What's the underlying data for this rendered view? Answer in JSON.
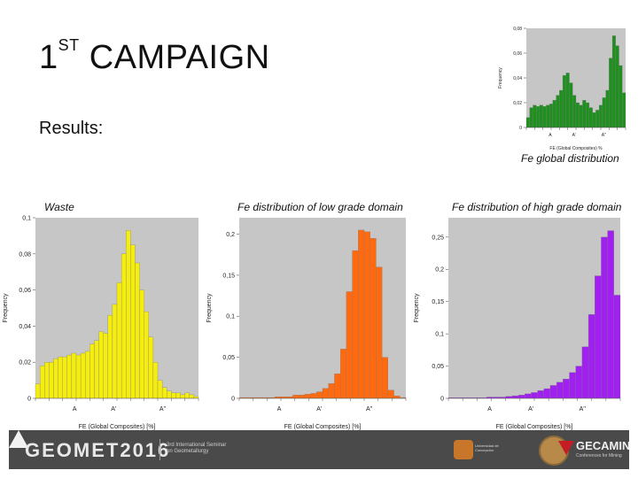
{
  "slide": {
    "title_main": "1",
    "title_sup": "ST",
    "title_rest": "CAMPAIGN",
    "subtitle": "Results:"
  },
  "captions": {
    "global": "Fe global distribution",
    "waste": "Waste",
    "low": "Fe distribution of low grade domain",
    "high": "Fe distribution of high grade domain"
  },
  "footer": {
    "brand": "GEOMET2016",
    "brand_sub": "3rd International Seminar on Geometallurgy",
    "university": "Universidad de Concepción",
    "partner": "GECAMIN",
    "partner_sub": "Conferences for Mining"
  },
  "chart_data": [
    {
      "id": "global",
      "type": "bar",
      "color": "#1f8f1f",
      "ylabel": "Frequency",
      "xlabel": "FE (Global Composites) %",
      "ylim": [
        0,
        0.08
      ],
      "yticks": [
        "0",
        "0,02",
        "0,04",
        "0,06",
        "0,08"
      ],
      "xtick_labels": [
        "A",
        "A'",
        "A''"
      ],
      "values": [
        0.008,
        0.016,
        0.018,
        0.017,
        0.018,
        0.017,
        0.018,
        0.019,
        0.022,
        0.026,
        0.03,
        0.042,
        0.044,
        0.036,
        0.026,
        0.02,
        0.018,
        0.022,
        0.02,
        0.016,
        0.012,
        0.014,
        0.018,
        0.024,
        0.03,
        0.056,
        0.074,
        0.066,
        0.05,
        0.028
      ]
    },
    {
      "id": "waste",
      "type": "bar",
      "color": "#f5ec10",
      "ylabel": "Frequency",
      "xlabel": "FE (Global Composites) [%]",
      "ylim": [
        0,
        0.1
      ],
      "yticks": [
        "0",
        "0,02",
        "0,04",
        "0,06",
        "0,08",
        "0,1"
      ],
      "xtick_labels": [
        "A",
        "A'",
        "A''"
      ],
      "values": [
        0.008,
        0.018,
        0.02,
        0.02,
        0.022,
        0.023,
        0.023,
        0.024,
        0.025,
        0.024,
        0.025,
        0.026,
        0.03,
        0.032,
        0.037,
        0.036,
        0.046,
        0.052,
        0.064,
        0.08,
        0.093,
        0.085,
        0.075,
        0.06,
        0.048,
        0.034,
        0.02,
        0.01,
        0.006,
        0.004,
        0.003,
        0.003,
        0.002,
        0.003,
        0.002,
        0.001
      ]
    },
    {
      "id": "low",
      "type": "bar",
      "color": "#ff6a10",
      "ylabel": "Frequency",
      "xlabel": "FE (Global Composites) [%]",
      "ylim": [
        0,
        0.22
      ],
      "yticks": [
        "0",
        "0,05",
        "0,1",
        "0,15",
        "0,2"
      ],
      "xtick_labels": [
        "A",
        "A'",
        "A''"
      ],
      "values": [
        0.001,
        0.001,
        0.001,
        0.001,
        0.001,
        0.001,
        0.002,
        0.002,
        0.002,
        0.004,
        0.004,
        0.005,
        0.006,
        0.008,
        0.012,
        0.018,
        0.03,
        0.06,
        0.13,
        0.18,
        0.205,
        0.203,
        0.195,
        0.16,
        0.05,
        0.01,
        0.003,
        0.001
      ]
    },
    {
      "id": "high",
      "type": "bar",
      "color": "#a020f0",
      "ylabel": "Frequency",
      "xlabel": "FE (Global Composites) [%]",
      "ylim": [
        0,
        0.28
      ],
      "yticks": [
        "0",
        "0,05",
        "0,1",
        "0,15",
        "0,2",
        "0,25"
      ],
      "xtick_labels": [
        "A",
        "A'",
        "A''"
      ],
      "values": [
        0.001,
        0.001,
        0.001,
        0.001,
        0.001,
        0.001,
        0.002,
        0.002,
        0.002,
        0.003,
        0.004,
        0.005,
        0.007,
        0.009,
        0.012,
        0.015,
        0.02,
        0.025,
        0.03,
        0.04,
        0.05,
        0.08,
        0.13,
        0.19,
        0.25,
        0.26,
        0.16
      ]
    }
  ]
}
